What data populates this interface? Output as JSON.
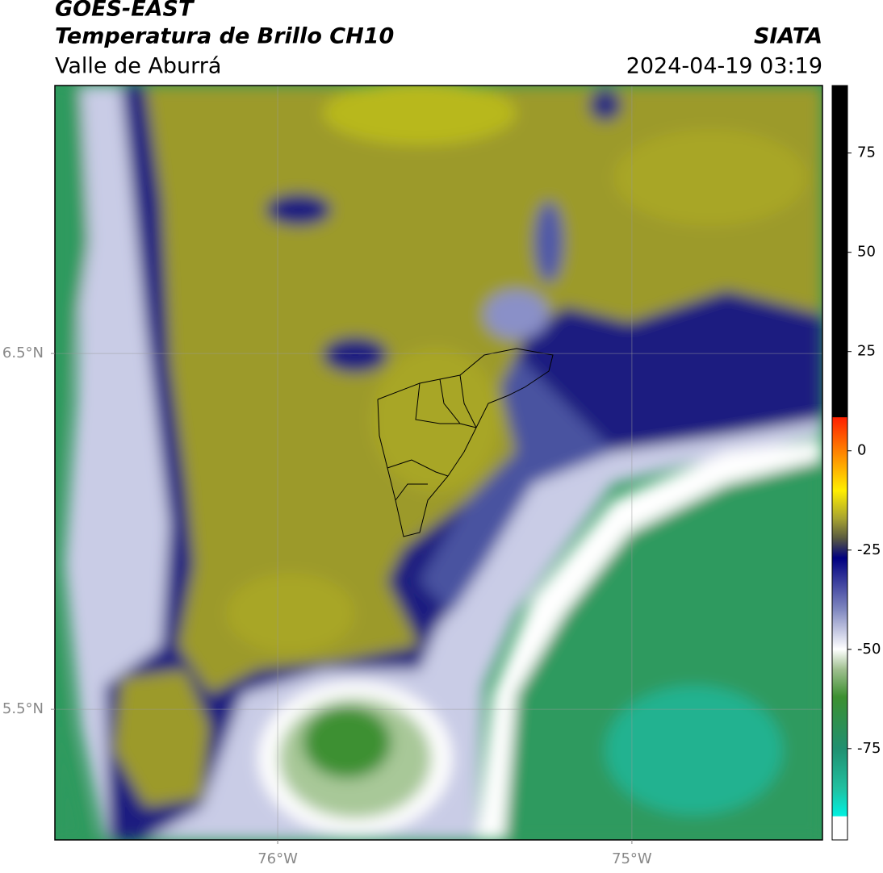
{
  "chart_data": {
    "type": "map",
    "title": "GOES-EAST",
    "subtitle": "Temperatura de Brillo CH10",
    "region": "Valle de Aburrá",
    "source": "SIATA",
    "datetime": "2024-04-19 03:19",
    "xlim": [
      -76.629,
      -74.462
    ],
    "ylim": [
      5.133,
      7.253
    ],
    "xticks": [
      {
        "value": -76,
        "label": "76°W"
      },
      {
        "value": -75,
        "label": "75°W"
      }
    ],
    "yticks": [
      {
        "value": 6.5,
        "label": "6.5°N"
      },
      {
        "value": 5.5,
        "label": "5.5°N"
      }
    ],
    "grid": true,
    "clim": [
      -98,
      92
    ],
    "cticks": [
      75,
      50,
      25,
      0,
      -25,
      -50,
      -75
    ],
    "colormap": [
      {
        "value": 92,
        "color": "#000000"
      },
      {
        "value": 8.5,
        "color": "#000000"
      },
      {
        "value": 8.4,
        "color": "#ff2000"
      },
      {
        "value": 0,
        "color": "#ff8000"
      },
      {
        "value": -10,
        "color": "#ffee00"
      },
      {
        "value": -17,
        "color": "#a8a430"
      },
      {
        "value": -22,
        "color": "#5a5a40"
      },
      {
        "value": -27,
        "color": "#000080"
      },
      {
        "value": -40,
        "color": "#8088c0"
      },
      {
        "value": -50,
        "color": "#ffffff"
      },
      {
        "value": -55,
        "color": "#a0c090"
      },
      {
        "value": -62,
        "color": "#3c9030"
      },
      {
        "value": -75,
        "color": "#209070"
      },
      {
        "value": -85,
        "color": "#20c0a0"
      },
      {
        "value": -92,
        "color": "#00f0e0"
      },
      {
        "value": -92.1,
        "color": "#ffffff"
      },
      {
        "value": -98,
        "color": "#ffffff"
      }
    ]
  }
}
